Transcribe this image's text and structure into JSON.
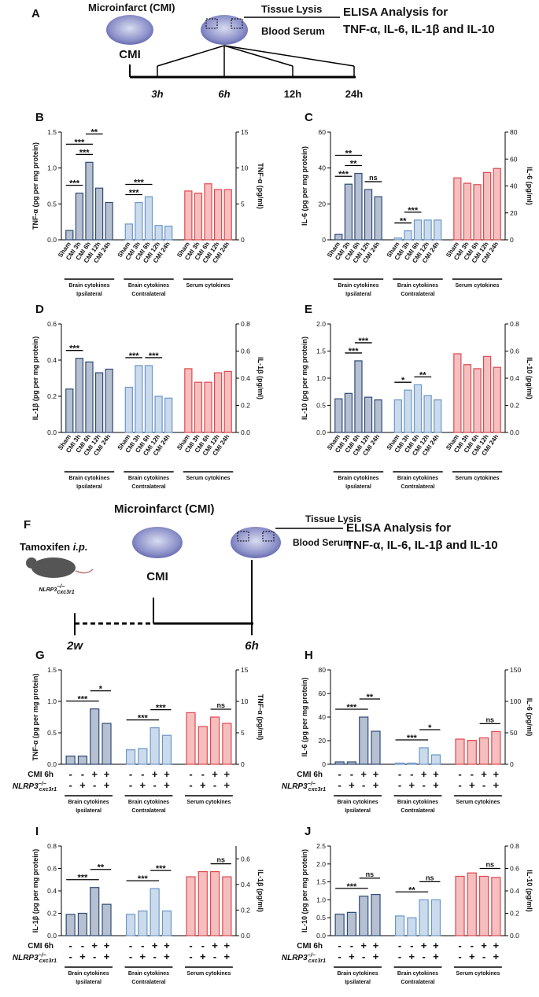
{
  "panel_a": {
    "label": "A",
    "model": "Microinfarct (CMI)",
    "group": "CMI",
    "lysis": "Tissue Lysis",
    "serum": "Blood Serum",
    "assay": "ELISA Analysis for",
    "targets": "TNF-α, IL-6, IL-1β and IL-10",
    "timepoints": [
      "3h",
      "6h",
      "12h",
      "24h"
    ]
  },
  "panel_f": {
    "label": "F",
    "drug": "Tamoxifen",
    "route": "i.p.",
    "genotype": {
      "base": "NLRP3",
      "sup": "−/−",
      "sub": "cxc3r1"
    },
    "model": "Microinfarct (CMI)",
    "group": "CMI",
    "lysis": "Tissue Lysis",
    "serum": "Blood Serum",
    "assay": "ELISA Analysis for",
    "targets": "TNF-α, IL-6, IL-1β and IL-10",
    "timepoints": [
      "2w",
      "6h"
    ]
  },
  "chart_data": [
    {
      "type": "bar",
      "label": "B",
      "ylabel": "TNF-α (pg per mg protein)",
      "y2label": "TNF-α (pg/ml)",
      "ylim": [
        0,
        1.5
      ],
      "yticks": [
        {
          "value": 0,
          "label": "0.0"
        },
        0.5,
        {
          "value": 1,
          "label": "1.0"
        },
        1.5
      ],
      "y2lim": [
        0,
        15
      ],
      "y2ticks": [
        0,
        5,
        10,
        15
      ],
      "categories": [
        "Sham",
        "CMI 3h",
        "CMI 6h",
        "CMI 12h",
        "CMI 24h"
      ],
      "series": [
        {
          "name": "Brain cytokines",
          "region": "Ipsilateral",
          "color": "#2e4a78",
          "values": [
            0.13,
            0.65,
            1.08,
            0.72,
            0.52
          ]
        },
        {
          "name": "Brain cytokines",
          "region": "Contralateral",
          "color": "#6b97c8",
          "values": [
            0.22,
            0.52,
            0.6,
            0.2,
            0.19
          ]
        },
        {
          "name": "Serum cytokines",
          "color": "#e2474b",
          "axis": "y2",
          "values": [
            6.8,
            6.5,
            7.8,
            7.0,
            7.0
          ]
        }
      ],
      "annotations": [
        {
          "text": "***",
          "series": 0,
          "from": 0,
          "to": 1
        },
        {
          "text": "***",
          "series": 0,
          "from": 1,
          "to": 2
        },
        {
          "text": "***",
          "series": 0,
          "from": 0,
          "to": 2
        },
        {
          "text": "**",
          "series": 0,
          "from": 2,
          "to": 3
        },
        {
          "text": "***",
          "series": 1,
          "from": 0,
          "to": 1
        },
        {
          "text": "***",
          "series": 1,
          "from": 0,
          "to": 2
        }
      ]
    },
    {
      "type": "bar",
      "label": "C",
      "ylabel": "IL-6 (pg per mg protein)",
      "y2label": "IL-6 (pg/ml)",
      "ylim": [
        0,
        60
      ],
      "yticks": [
        0,
        20,
        40,
        60
      ],
      "y2lim": [
        0,
        80
      ],
      "y2ticks": [
        0,
        20,
        40,
        60,
        80
      ],
      "categories": [
        "Sham",
        "CMI 3h",
        "CMI 6h",
        "CMI 12h",
        "CMI 24h"
      ],
      "series": [
        {
          "name": "Brain cytokines",
          "region": "Ipsilateral",
          "color": "#2e4a78",
          "values": [
            3,
            31,
            37,
            28,
            24
          ]
        },
        {
          "name": "Brain cytokines",
          "region": "Contralateral",
          "color": "#6b97c8",
          "values": [
            1,
            5,
            11,
            11,
            11
          ]
        },
        {
          "name": "Serum cytokines",
          "color": "#e2474b",
          "axis": "y2",
          "values": [
            46,
            42,
            41,
            50,
            53
          ]
        }
      ],
      "annotations": [
        {
          "text": "***",
          "series": 0,
          "from": 0,
          "to": 1
        },
        {
          "text": "**",
          "series": 0,
          "from": 1,
          "to": 2
        },
        {
          "text": "**",
          "series": 0,
          "from": 0,
          "to": 2
        },
        {
          "text": "ns",
          "series": 0,
          "from": 3,
          "to": 4
        },
        {
          "text": "**",
          "series": 1,
          "from": 0,
          "to": 1
        },
        {
          "text": "***",
          "series": 1,
          "from": 1,
          "to": 2
        }
      ]
    },
    {
      "type": "bar",
      "label": "D",
      "ylabel": "IL-1β (pg per mg protein)",
      "y2label": "IL-1β (pg/ml)",
      "ylim": [
        0,
        0.6
      ],
      "yticks": [
        {
          "value": 0,
          "label": "0.0"
        },
        0.2,
        0.4,
        0.6
      ],
      "y2lim": [
        0,
        0.8
      ],
      "y2ticks": [
        {
          "value": 0,
          "label": "0.0"
        },
        0.2,
        0.4,
        0.6,
        0.8
      ],
      "categories": [
        "Sham",
        "CMI 3h",
        "CMI 6h",
        "CMI 12h",
        "CMI 24h"
      ],
      "series": [
        {
          "name": "Brain cytokines",
          "region": "Ipsilateral",
          "color": "#2e4a78",
          "values": [
            0.24,
            0.41,
            0.39,
            0.33,
            0.35
          ]
        },
        {
          "name": "Brain cytokines",
          "region": "Contralateral",
          "color": "#6b97c8",
          "values": [
            0.25,
            0.37,
            0.37,
            0.2,
            0.19
          ]
        },
        {
          "name": "Serum cytokines",
          "color": "#e2474b",
          "axis": "y2",
          "values": [
            0.47,
            0.37,
            0.37,
            0.44,
            0.45
          ]
        }
      ],
      "annotations": [
        {
          "text": "***",
          "series": 0,
          "from": 0,
          "to": 1
        },
        {
          "text": "***",
          "series": 1,
          "from": 0,
          "to": 1
        },
        {
          "text": "***",
          "series": 1,
          "from": 2,
          "to": 3
        }
      ]
    },
    {
      "type": "bar",
      "label": "E",
      "ylabel": "IL-10 (pg per mg protein)",
      "y2label": "IL-10 (pg/ml)",
      "ylim": [
        0,
        2
      ],
      "yticks": [
        {
          "value": 0,
          "label": "0.0"
        },
        0.5,
        {
          "value": 1,
          "label": "1.0"
        },
        1.5,
        {
          "value": 2,
          "label": "2.0"
        }
      ],
      "y2lim": [
        0,
        0.8
      ],
      "y2ticks": [
        {
          "value": 0,
          "label": "0.0"
        },
        0.2,
        0.4,
        0.6,
        0.8
      ],
      "categories": [
        "Sham",
        "CMI 3h",
        "CMI 6h",
        "CMI 12h",
        "CMI 24h"
      ],
      "series": [
        {
          "name": "Brain cytokines",
          "region": "Ipsilateral",
          "color": "#2e4a78",
          "values": [
            0.62,
            0.72,
            1.32,
            0.65,
            0.6
          ]
        },
        {
          "name": "Brain cytokines",
          "region": "Contralateral",
          "color": "#6b97c8",
          "values": [
            0.6,
            0.78,
            0.88,
            0.68,
            0.6
          ]
        },
        {
          "name": "Serum cytokines",
          "color": "#e2474b",
          "axis": "y2",
          "values": [
            0.58,
            0.5,
            0.47,
            0.56,
            0.48
          ]
        }
      ],
      "annotations": [
        {
          "text": "***",
          "series": 0,
          "from": 1,
          "to": 2
        },
        {
          "text": "***",
          "series": 0,
          "from": 2,
          "to": 3
        },
        {
          "text": "*",
          "series": 1,
          "from": 0,
          "to": 1
        },
        {
          "text": "**",
          "series": 1,
          "from": 2,
          "to": 3
        }
      ]
    },
    {
      "type": "bar",
      "label": "G",
      "ylabel": "TNF-α (pg per mg protein)",
      "y2label": "TNF-α (pg/ml)",
      "ylim": [
        0,
        1.5
      ],
      "yticks": [
        {
          "value": 0,
          "label": "0.0"
        },
        0.5,
        {
          "value": 1,
          "label": "1.0"
        },
        1.5
      ],
      "y2lim": [
        0,
        15
      ],
      "y2ticks": [
        0,
        5,
        10,
        15
      ],
      "rows": [
        {
          "label": "CMI 6h",
          "marks": [
            "-",
            "-",
            "+",
            "+"
          ]
        },
        {
          "label": {
            "base": "NLRP3",
            "sup": "−/−",
            "sub": "cxc3r1"
          },
          "marks": [
            "-",
            "+",
            "-",
            "+"
          ]
        }
      ],
      "series": [
        {
          "name": "Brain cytokines",
          "region": "Ipsilateral",
          "color": "#2e4a78",
          "values": [
            0.13,
            0.13,
            0.88,
            0.65
          ]
        },
        {
          "name": "Brain cytokines",
          "region": "Contralateral",
          "color": "#6b97c8",
          "values": [
            0.23,
            0.25,
            0.58,
            0.46
          ]
        },
        {
          "name": "Serum cytokines",
          "color": "#e2474b",
          "axis": "y2",
          "values": [
            8.2,
            6.0,
            7.5,
            6.5
          ]
        }
      ],
      "annotations": [
        {
          "text": "***",
          "series": 0,
          "from": 0,
          "to": 2
        },
        {
          "text": "*",
          "series": 0,
          "from": 2,
          "to": 3
        },
        {
          "text": "***",
          "series": 1,
          "from": 0,
          "to": 2
        },
        {
          "text": "***",
          "series": 1,
          "from": 2,
          "to": 3
        },
        {
          "text": "ns",
          "series": 2,
          "from": 2,
          "to": 3
        }
      ]
    },
    {
      "type": "bar",
      "label": "H",
      "ylabel": "IL-6 (pg per mg protein)",
      "y2label": "IL-6 (pg/ml)",
      "ylim": [
        0,
        80
      ],
      "yticks": [
        0,
        20,
        40,
        60,
        80
      ],
      "y2lim": [
        0,
        150
      ],
      "y2ticks": [
        0,
        50,
        100,
        150
      ],
      "rows": [
        {
          "label": "CMI 6h",
          "marks": [
            "-",
            "-",
            "+",
            "+"
          ]
        },
        {
          "label": {
            "base": "NLRP3",
            "sup": "−/−",
            "sub": "cxc3r1"
          },
          "marks": [
            "-",
            "+",
            "-",
            "+"
          ]
        }
      ],
      "series": [
        {
          "name": "Brain cytokines",
          "region": "Ipsilateral",
          "color": "#2e4a78",
          "values": [
            2,
            2,
            40,
            28
          ]
        },
        {
          "name": "Brain cytokines",
          "region": "Contralateral",
          "color": "#6b97c8",
          "values": [
            1,
            1,
            14,
            8
          ]
        },
        {
          "name": "Serum cytokines",
          "color": "#e2474b",
          "axis": "y2",
          "values": [
            40,
            38,
            42,
            52
          ]
        }
      ],
      "annotations": [
        {
          "text": "***",
          "series": 0,
          "from": 0,
          "to": 2
        },
        {
          "text": "**",
          "series": 0,
          "from": 2,
          "to": 3
        },
        {
          "text": "***",
          "series": 1,
          "from": 0,
          "to": 2
        },
        {
          "text": "*",
          "series": 1,
          "from": 2,
          "to": 3
        },
        {
          "text": "ns",
          "series": 2,
          "from": 2,
          "to": 3
        }
      ]
    },
    {
      "type": "bar",
      "label": "I",
      "ylabel": "IL-1β (pg per mg protein)",
      "y2label": "IL-1β (pg/ml)",
      "ylim": [
        0,
        0.8
      ],
      "yticks": [
        {
          "value": 0,
          "label": "0.0"
        },
        0.2,
        0.4,
        0.6,
        0.8
      ],
      "y2lim": [
        0,
        0.7
      ],
      "y2ticks": [
        {
          "value": 0,
          "label": "0.0"
        },
        0.2,
        0.4,
        0.6
      ],
      "rows": [
        {
          "label": "CMI 6h",
          "marks": [
            "-",
            "-",
            "+",
            "+"
          ]
        },
        {
          "label": {
            "base": "NLRP3",
            "sup": "−/−",
            "sub": "cxc3r1"
          },
          "marks": [
            "-",
            "+",
            "-",
            "+"
          ]
        }
      ],
      "series": [
        {
          "name": "Brain cytokines",
          "region": "Ipsilateral",
          "color": "#2e4a78",
          "values": [
            0.19,
            0.2,
            0.43,
            0.28
          ]
        },
        {
          "name": "Brain cytokines",
          "region": "Contralateral",
          "color": "#6b97c8",
          "values": [
            0.19,
            0.22,
            0.42,
            0.22
          ]
        },
        {
          "name": "Serum cytokines",
          "color": "#e2474b",
          "axis": "y2",
          "values": [
            0.46,
            0.5,
            0.5,
            0.46
          ]
        }
      ],
      "annotations": [
        {
          "text": "***",
          "series": 0,
          "from": 0,
          "to": 2
        },
        {
          "text": "**",
          "series": 0,
          "from": 2,
          "to": 3
        },
        {
          "text": "***",
          "series": 1,
          "from": 0,
          "to": 2
        },
        {
          "text": "***",
          "series": 1,
          "from": 2,
          "to": 3
        },
        {
          "text": "ns",
          "series": 2,
          "from": 2,
          "to": 3
        }
      ]
    },
    {
      "type": "bar",
      "label": "J",
      "ylabel": "IL-10 (pg per mg protein)",
      "y2label": "IL-10 (pg/ml)",
      "ylim": [
        0,
        2.5
      ],
      "yticks": [
        {
          "value": 0,
          "label": "0.0"
        },
        0.5,
        {
          "value": 1,
          "label": "1.0"
        },
        1.5,
        {
          "value": 2,
          "label": "2.0"
        },
        2.5
      ],
      "y2lim": [
        0,
        0.8
      ],
      "y2ticks": [
        {
          "value": 0,
          "label": "0.0"
        },
        0.2,
        0.4,
        0.6,
        0.8
      ],
      "rows": [
        {
          "label": "CMI 6h",
          "marks": [
            "-",
            "-",
            "+",
            "+"
          ]
        },
        {
          "label": {
            "base": "NLRP3",
            "sup": "−/−",
            "sub": "cxc3r1"
          },
          "marks": [
            "-",
            "+",
            "-",
            "+"
          ]
        }
      ],
      "series": [
        {
          "name": "Brain cytokines",
          "region": "Ipsilateral",
          "color": "#2e4a78",
          "values": [
            0.6,
            0.65,
            1.1,
            1.15
          ]
        },
        {
          "name": "Brain cytokines",
          "region": "Contralateral",
          "color": "#6b97c8",
          "values": [
            0.55,
            0.5,
            1.0,
            1.0
          ]
        },
        {
          "name": "Serum cytokines",
          "color": "#e2474b",
          "axis": "y2",
          "values": [
            0.53,
            0.56,
            0.53,
            0.52
          ]
        }
      ],
      "annotations": [
        {
          "text": "***",
          "series": 0,
          "from": 0,
          "to": 2
        },
        {
          "text": "ns",
          "series": 0,
          "from": 2,
          "to": 3
        },
        {
          "text": "**",
          "series": 1,
          "from": 0,
          "to": 2
        },
        {
          "text": "ns",
          "series": 1,
          "from": 2,
          "to": 3
        },
        {
          "text": "ns",
          "series": 2,
          "from": 2,
          "to": 3
        }
      ]
    }
  ]
}
